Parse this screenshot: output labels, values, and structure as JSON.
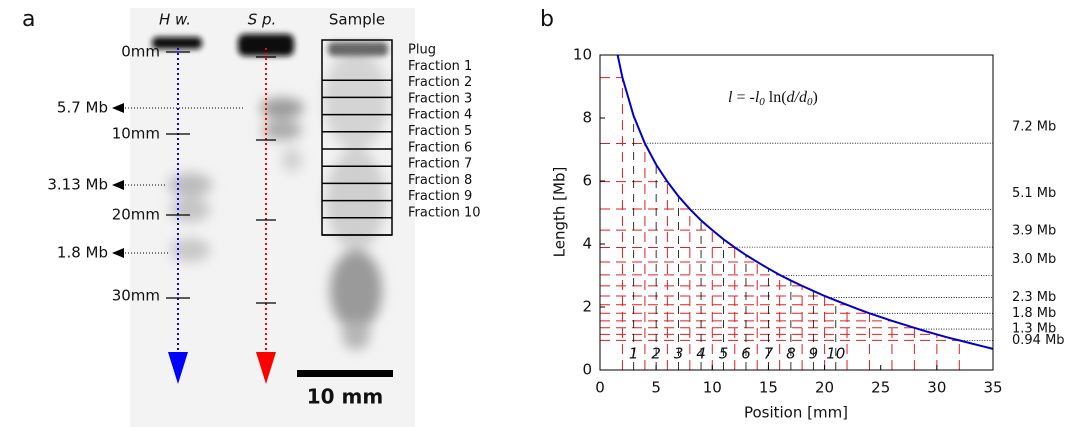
{
  "panel_a": {
    "label": "a",
    "lanes": [
      "H w.",
      "S p.",
      "Sample"
    ],
    "mm_marks": [
      "0mm",
      "10mm",
      "20mm",
      "30mm"
    ],
    "size_marks": [
      "5.7 Mb",
      "3.13 Mb",
      "1.8 Mb"
    ],
    "fractions": [
      "Plug",
      "Fraction 1",
      "Fraction 2",
      "Fraction 3",
      "Fraction 4",
      "Fraction 5",
      "Fraction 6",
      "Fraction 7",
      "Fraction 8",
      "Fraction 9",
      "Fraction 10"
    ],
    "scale_bar": "10 mm"
  },
  "chart_data": {
    "type": "line",
    "label": "b",
    "formula": [
      "l",
      " = -",
      "l",
      "0",
      " ln(",
      "d/d",
      "0",
      ")"
    ],
    "x_label": "Position [mm]",
    "y_label": "Length [Mb]",
    "xlim": [
      0,
      35
    ],
    "ylim": [
      0,
      10
    ],
    "xticks": [
      0,
      5,
      10,
      15,
      20,
      25,
      30,
      35
    ],
    "yticks": [
      0,
      2,
      4,
      6,
      8,
      10
    ],
    "series": [
      {
        "color": "#0000cc",
        "x": [
          1.57,
          2,
          3,
          4,
          5,
          6,
          7,
          8,
          9,
          10,
          11,
          12,
          13,
          14,
          15,
          16,
          17,
          18,
          19,
          20,
          21,
          22,
          23,
          24,
          25,
          26,
          27,
          28,
          29,
          30,
          31,
          32,
          33,
          34,
          35
        ],
        "values": [
          10.0,
          9.28,
          8.06,
          7.19,
          6.52,
          5.98,
          5.51,
          5.11,
          4.75,
          4.44,
          4.15,
          3.89,
          3.65,
          3.43,
          3.22,
          3.02,
          2.84,
          2.67,
          2.51,
          2.35,
          2.21,
          2.07,
          1.93,
          1.8,
          1.68,
          1.56,
          1.45,
          1.34,
          1.23,
          1.13,
          1.03,
          0.94,
          0.85,
          0.76,
          0.67
        ]
      }
    ],
    "fraction_boundaries": {
      "color": "#e02020",
      "x": [
        2,
        4,
        6,
        8,
        10,
        12,
        14,
        16,
        18,
        20,
        22,
        24,
        26,
        28,
        30,
        32
      ],
      "values": [
        9.28,
        7.19,
        5.98,
        5.11,
        4.44,
        3.89,
        3.43,
        3.02,
        2.67,
        2.35,
        2.07,
        1.8,
        1.56,
        1.34,
        1.13,
        0.94
      ]
    },
    "fraction_labels": {
      "x": [
        3,
        5,
        7,
        9,
        11,
        13,
        15,
        17,
        19,
        21
      ],
      "labels": [
        "1",
        "2",
        "3",
        "4",
        "5",
        "6",
        "7",
        "8",
        "9",
        "10"
      ]
    },
    "hlines": [
      {
        "value": 7.2,
        "label": "7.2 Mb"
      },
      {
        "value": 5.1,
        "label": "5.1 Mb"
      },
      {
        "value": 3.9,
        "label": "3.9 Mb"
      },
      {
        "value": 3.0,
        "label": "3.0 Mb"
      },
      {
        "value": 2.3,
        "label": "2.3 Mb"
      },
      {
        "value": 1.8,
        "label": "1.8 Mb"
      },
      {
        "value": 1.3,
        "label": "1.3 Mb"
      },
      {
        "value": 0.94,
        "label": "0.94 Mb"
      }
    ]
  }
}
